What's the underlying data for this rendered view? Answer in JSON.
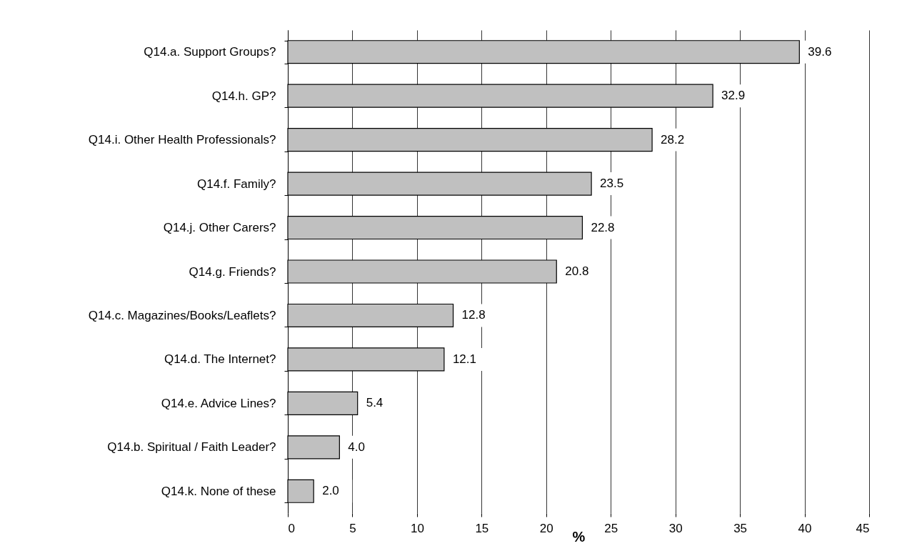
{
  "chart_data": {
    "type": "bar",
    "orientation": "horizontal",
    "xlabel": "%",
    "categories": [
      "Q14.a. Support Groups?",
      "Q14.h. GP?",
      "Q14.i. Other Health Professionals?",
      "Q14.f. Family?",
      "Q14.j. Other Carers?",
      "Q14.g. Friends?",
      "Q14.c. Magazines/Books/Leaflets?",
      "Q14.d. The Internet?",
      "Q14.e. Advice Lines?",
      "Q14.b. Spiritual / Faith Leader?",
      "Q14.k. None of these"
    ],
    "values": [
      39.6,
      32.9,
      28.2,
      23.5,
      22.8,
      20.8,
      12.8,
      12.1,
      5.4,
      4.0,
      2.0
    ],
    "color": "#c0c0c0",
    "xlim": [
      0,
      45
    ],
    "xticks": [
      0,
      5,
      10,
      15,
      20,
      25,
      30,
      35,
      40,
      45
    ],
    "grid": "x",
    "value_labels": [
      "39.6",
      "32.9",
      "28.2",
      "23.5",
      "22.8",
      "20.8",
      "12.8",
      "12.1",
      "5.4",
      "4.0",
      "2.0"
    ]
  }
}
